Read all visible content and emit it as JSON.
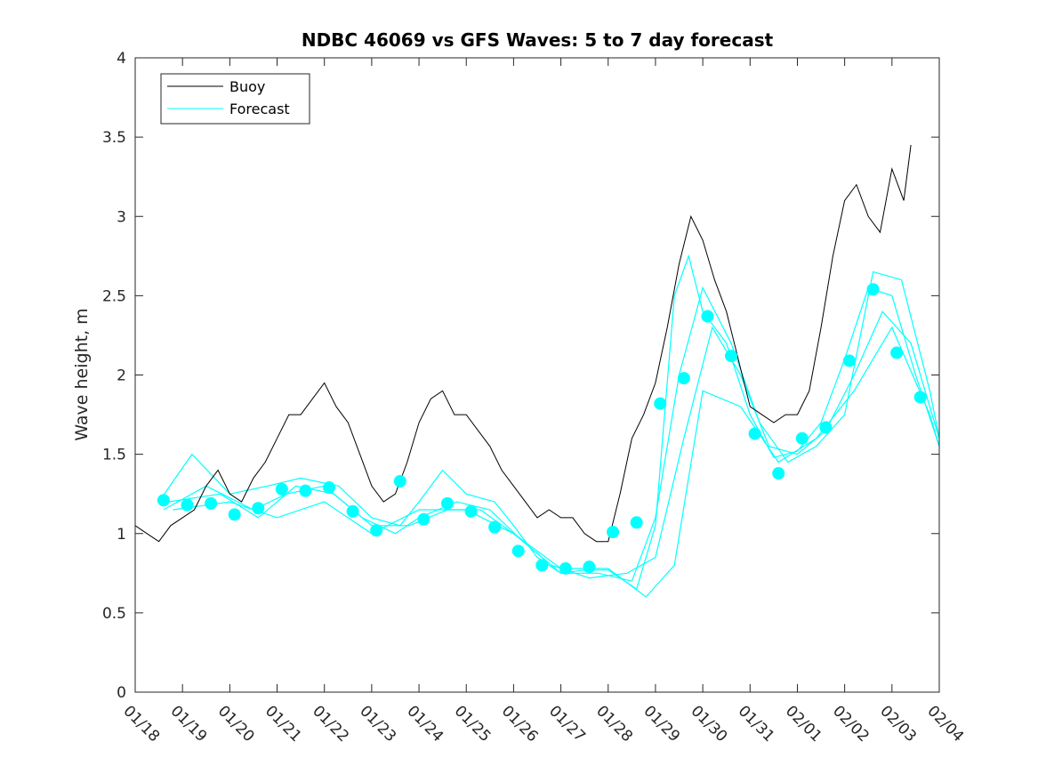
{
  "chart_data": {
    "type": "line",
    "title": "NDBC 46069 vs GFS Waves: 5 to 7 day forecast",
    "xlabel": "",
    "ylabel": "Wave height, m",
    "xlim": [
      0,
      17
    ],
    "ylim": [
      0,
      4
    ],
    "yticks": [
      0,
      0.5,
      1,
      1.5,
      2,
      2.5,
      3,
      3.5,
      4
    ],
    "ytick_labels": [
      "0",
      "0.5",
      "1",
      "1.5",
      "2",
      "2.5",
      "3",
      "3.5",
      "4"
    ],
    "xticks": [
      0,
      1,
      2,
      3,
      4,
      5,
      6,
      7,
      8,
      9,
      10,
      11,
      12,
      13,
      14,
      15,
      16,
      17
    ],
    "xtick_labels": [
      "01/18",
      "01/19",
      "01/20",
      "01/21",
      "01/22",
      "01/23",
      "01/24",
      "01/25",
      "01/26",
      "01/27",
      "01/28",
      "01/29",
      "01/30",
      "01/31",
      "02/01",
      "02/02",
      "02/03",
      "02/04"
    ],
    "legend": {
      "position": "top-left",
      "entries": [
        "Buoy",
        "Forecast"
      ]
    },
    "colors": {
      "buoy": "#000000",
      "forecast": "#00ffff",
      "axis": "#262626"
    },
    "grid": false,
    "series": [
      {
        "name": "Buoy",
        "style": "line",
        "x": [
          0,
          0.25,
          0.5,
          0.75,
          1,
          1.25,
          1.5,
          1.75,
          2,
          2.25,
          2.5,
          2.75,
          3,
          3.25,
          3.5,
          3.75,
          4,
          4.25,
          4.5,
          4.75,
          5,
          5.25,
          5.5,
          5.75,
          6,
          6.25,
          6.5,
          6.75,
          7,
          7.25,
          7.5,
          7.75,
          8,
          8.25,
          8.5,
          8.75,
          9,
          9.25,
          9.5,
          9.75,
          10,
          10.25,
          10.5,
          10.75,
          11,
          11.25,
          11.5,
          11.75,
          12,
          12.25,
          12.5,
          12.75,
          13,
          13.25,
          13.5,
          13.75,
          14,
          14.25,
          14.5,
          14.75,
          15,
          15.25,
          15.5,
          15.75,
          16,
          16.25,
          16.4
        ],
        "values": [
          1.05,
          1.0,
          0.95,
          1.05,
          1.1,
          1.15,
          1.3,
          1.4,
          1.25,
          1.2,
          1.35,
          1.45,
          1.6,
          1.75,
          1.75,
          1.85,
          1.95,
          1.8,
          1.7,
          1.5,
          1.3,
          1.2,
          1.25,
          1.45,
          1.7,
          1.85,
          1.9,
          1.75,
          1.75,
          1.65,
          1.55,
          1.4,
          1.3,
          1.2,
          1.1,
          1.15,
          1.1,
          1.1,
          1.0,
          0.95,
          0.95,
          1.25,
          1.6,
          1.75,
          1.95,
          2.3,
          2.7,
          3.0,
          2.85,
          2.6,
          2.4,
          2.1,
          1.8,
          1.75,
          1.7,
          1.75,
          1.75,
          1.9,
          2.3,
          2.75,
          3.1,
          3.2,
          3.0,
          2.9,
          3.3,
          3.1,
          3.45
        ]
      },
      {
        "name": "Forecast",
        "style": "lines",
        "runs": [
          {
            "x": [
              0.5,
              1.2,
              2.0,
              2.8,
              3.5,
              4.3,
              5.0,
              5.6,
              6.0,
              6.5,
              7.0,
              7.6,
              8.0,
              8.5,
              9.0,
              9.5,
              10.0,
              10.6,
              11.0,
              11.4,
              11.7,
              12.0,
              12.5,
              13.0,
              13.5,
              14.0,
              14.5,
              15.0,
              15.5,
              16.0,
              16.5,
              17.0
            ],
            "values": [
              1.2,
              1.5,
              1.25,
              1.3,
              1.35,
              1.3,
              1.1,
              1.05,
              1.2,
              1.4,
              1.25,
              1.2,
              1.05,
              0.85,
              0.75,
              0.77,
              0.77,
              0.65,
              1.05,
              2.5,
              2.75,
              2.4,
              2.2,
              1.75,
              1.48,
              1.52,
              1.7,
              2.1,
              2.55,
              2.5,
              2.0,
              1.55
            ]
          },
          {
            "x": [
              0.6,
              1.5,
              2.5,
              3.2,
              4.0,
              4.8,
              5.5,
              6.0,
              6.8,
              7.5,
              8.2,
              9.0,
              9.8,
              10.5,
              11.0,
              11.5,
              12.0,
              12.6,
              13.2,
              13.8,
              14.4,
              15.0,
              15.6,
              16.2,
              16.8,
              17.0
            ],
            "values": [
              1.15,
              1.3,
              1.15,
              1.25,
              1.3,
              1.1,
              1.0,
              1.1,
              1.2,
              1.15,
              0.95,
              0.75,
              0.75,
              0.7,
              1.1,
              2.0,
              2.55,
              2.2,
              1.7,
              1.45,
              1.55,
              1.75,
              2.65,
              2.6,
              1.9,
              1.6
            ]
          },
          {
            "x": [
              0.7,
              1.8,
              2.6,
              3.4,
              4.2,
              5.0,
              5.8,
              6.6,
              7.3,
              8.0,
              8.8,
              9.6,
              10.4,
              11.0,
              11.6,
              12.2,
              12.8,
              13.4,
              14.0,
              14.6,
              15.2,
              15.8,
              16.4,
              17.0
            ],
            "values": [
              1.2,
              1.25,
              1.1,
              1.3,
              1.25,
              1.05,
              1.05,
              1.15,
              1.15,
              1.0,
              0.8,
              0.72,
              0.75,
              0.85,
              1.6,
              2.3,
              2.0,
              1.55,
              1.5,
              1.65,
              2.0,
              2.4,
              2.2,
              1.6
            ]
          },
          {
            "x": [
              0.8,
              2.0,
              3.0,
              4.0,
              5.0,
              6.0,
              7.0,
              8.0,
              9.0,
              10.0,
              10.8,
              11.4,
              12.0,
              12.8,
              13.6,
              14.4,
              15.2,
              16.0,
              16.8,
              17.0
            ],
            "values": [
              1.15,
              1.2,
              1.1,
              1.2,
              1.0,
              1.15,
              1.15,
              1.0,
              0.78,
              0.78,
              0.6,
              0.8,
              1.9,
              1.8,
              1.45,
              1.6,
              1.9,
              2.3,
              1.75,
              1.55
            ]
          }
        ]
      },
      {
        "name": "Forecast markers",
        "style": "markers",
        "x": [
          0.6,
          1.1,
          1.6,
          2.1,
          2.6,
          3.1,
          3.6,
          4.1,
          4.6,
          5.1,
          5.6,
          6.1,
          6.6,
          7.1,
          7.6,
          8.1,
          8.6,
          9.1,
          9.6,
          10.1,
          10.6,
          11.1,
          11.6,
          12.1,
          12.6,
          13.1,
          13.6,
          14.1,
          14.6,
          15.1,
          15.6,
          16.1,
          16.6
        ],
        "values": [
          1.21,
          1.18,
          1.19,
          1.12,
          1.16,
          1.28,
          1.27,
          1.29,
          1.14,
          1.02,
          1.33,
          1.09,
          1.19,
          1.14,
          1.04,
          0.89,
          0.8,
          0.78,
          0.79,
          1.01,
          1.07,
          1.82,
          1.98,
          2.37,
          2.12,
          1.63,
          1.38,
          1.6,
          1.67,
          2.09,
          2.54,
          2.14,
          1.86
        ]
      }
    ]
  }
}
